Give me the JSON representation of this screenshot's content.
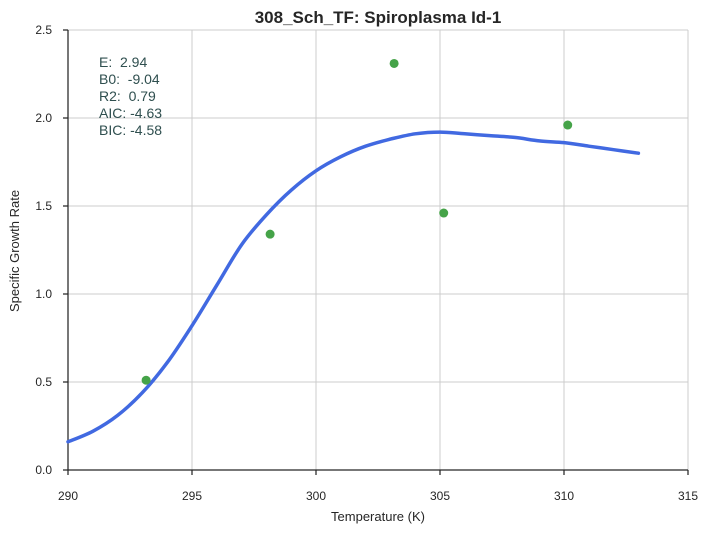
{
  "chart_data": {
    "type": "scatter",
    "title": "308_Sch_TF: Spiroplasma Id-1",
    "xlabel": "Temperature (K)",
    "ylabel": "Specific Growth Rate",
    "xlim": [
      290,
      315
    ],
    "ylim": [
      0,
      2.5
    ],
    "xticks": [
      "290",
      "295",
      "300",
      "305",
      "310",
      "315"
    ],
    "yticks": [
      "0.0",
      "0.5",
      "1.0",
      "1.5",
      "2.0",
      "2.5"
    ],
    "grid": true,
    "colors": {
      "points": "#45a348",
      "fit": "#4169e1",
      "stats_text": "#2f4f4f"
    },
    "series": [
      {
        "kind": "points",
        "x": [
          293.15,
          298.15,
          303.15,
          305.15,
          310.15
        ],
        "y": [
          0.51,
          1.34,
          2.31,
          1.46,
          1.96
        ]
      },
      {
        "kind": "fit-line",
        "x": [
          290.0,
          291.0,
          292.0,
          293.0,
          294.0,
          295.0,
          296.0,
          297.0,
          298.0,
          299.0,
          300.0,
          301.0,
          302.0,
          303.0,
          304.0,
          305.0,
          306.0,
          307.0,
          308.0,
          309.0,
          310.0,
          311.0,
          312.0,
          313.0
        ],
        "y": [
          0.16,
          0.22,
          0.31,
          0.44,
          0.61,
          0.82,
          1.05,
          1.28,
          1.45,
          1.59,
          1.7,
          1.78,
          1.84,
          1.88,
          1.91,
          1.92,
          1.91,
          1.9,
          1.89,
          1.87,
          1.86,
          1.84,
          1.82,
          1.8
        ]
      }
    ],
    "annotations": [
      "E:  2.94",
      "B0:  -9.04",
      "R2:  0.79",
      "AIC: -4.63",
      "BIC: -4.58"
    ]
  }
}
